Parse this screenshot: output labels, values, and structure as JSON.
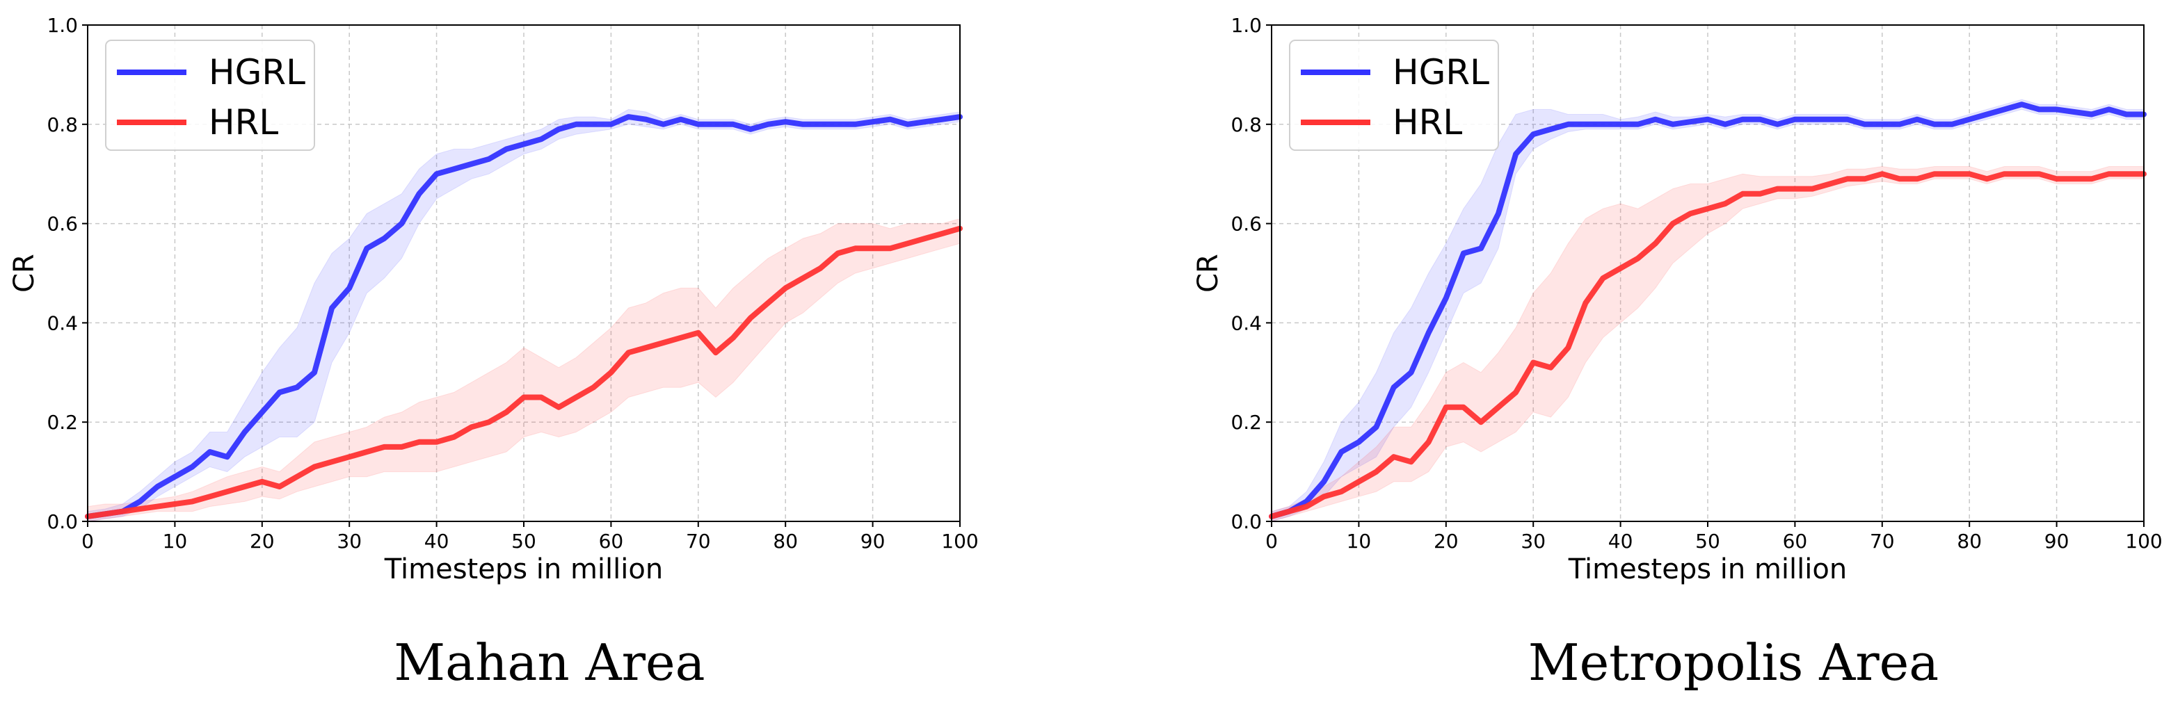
{
  "chart_data": [
    {
      "type": "line",
      "caption": "Mahan Area",
      "xlabel": "Timesteps in million",
      "ylabel": "CR",
      "xlim": [
        0,
        100
      ],
      "ylim": [
        0,
        1.0
      ],
      "xticks": [
        "0",
        "10",
        "20",
        "30",
        "40",
        "50",
        "60",
        "70",
        "80",
        "90",
        "100"
      ],
      "yticks": [
        "0.0",
        "0.2",
        "0.4",
        "0.6",
        "0.8",
        "1.0"
      ],
      "grid": true,
      "legend_position": "top-left",
      "series": [
        {
          "name": "HGRL",
          "color": "#3333ff",
          "x": [
            0,
            2,
            4,
            6,
            8,
            10,
            12,
            14,
            16,
            18,
            20,
            22,
            24,
            26,
            28,
            30,
            32,
            34,
            36,
            38,
            40,
            42,
            44,
            46,
            48,
            50,
            52,
            54,
            56,
            58,
            60,
            62,
            64,
            66,
            68,
            70,
            72,
            74,
            76,
            78,
            80,
            82,
            84,
            86,
            88,
            90,
            92,
            94,
            96,
            98,
            100
          ],
          "y": [
            0.01,
            0.015,
            0.02,
            0.04,
            0.07,
            0.09,
            0.11,
            0.14,
            0.13,
            0.18,
            0.22,
            0.26,
            0.27,
            0.3,
            0.43,
            0.47,
            0.55,
            0.57,
            0.6,
            0.66,
            0.7,
            0.71,
            0.72,
            0.73,
            0.75,
            0.76,
            0.77,
            0.79,
            0.8,
            0.8,
            0.8,
            0.815,
            0.81,
            0.8,
            0.81,
            0.8,
            0.8,
            0.8,
            0.79,
            0.8,
            0.805,
            0.8,
            0.8,
            0.8,
            0.8,
            0.805,
            0.81,
            0.8,
            0.805,
            0.81,
            0.815
          ],
          "lower": [
            0.0,
            0.005,
            0.01,
            0.025,
            0.05,
            0.07,
            0.09,
            0.11,
            0.1,
            0.13,
            0.15,
            0.17,
            0.17,
            0.2,
            0.32,
            0.38,
            0.46,
            0.49,
            0.53,
            0.6,
            0.65,
            0.67,
            0.69,
            0.7,
            0.72,
            0.74,
            0.75,
            0.77,
            0.78,
            0.785,
            0.79,
            0.8,
            0.795,
            0.79,
            0.8,
            0.79,
            0.79,
            0.79,
            0.78,
            0.79,
            0.795,
            0.79,
            0.79,
            0.79,
            0.79,
            0.795,
            0.8,
            0.79,
            0.795,
            0.8,
            0.805
          ],
          "upper": [
            0.02,
            0.025,
            0.035,
            0.06,
            0.09,
            0.12,
            0.14,
            0.18,
            0.18,
            0.24,
            0.3,
            0.35,
            0.39,
            0.48,
            0.54,
            0.57,
            0.62,
            0.64,
            0.66,
            0.71,
            0.74,
            0.75,
            0.75,
            0.76,
            0.77,
            0.78,
            0.79,
            0.81,
            0.815,
            0.815,
            0.81,
            0.83,
            0.825,
            0.81,
            0.82,
            0.81,
            0.81,
            0.81,
            0.8,
            0.81,
            0.815,
            0.81,
            0.81,
            0.81,
            0.81,
            0.815,
            0.82,
            0.81,
            0.815,
            0.82,
            0.825
          ]
        },
        {
          "name": "HRL",
          "color": "#ff3333",
          "x": [
            0,
            2,
            4,
            6,
            8,
            10,
            12,
            14,
            16,
            18,
            20,
            22,
            24,
            26,
            28,
            30,
            32,
            34,
            36,
            38,
            40,
            42,
            44,
            46,
            48,
            50,
            52,
            54,
            56,
            58,
            60,
            62,
            64,
            66,
            68,
            70,
            72,
            74,
            76,
            78,
            80,
            82,
            84,
            86,
            88,
            90,
            92,
            94,
            96,
            98,
            100
          ],
          "y": [
            0.01,
            0.015,
            0.02,
            0.025,
            0.03,
            0.035,
            0.04,
            0.05,
            0.06,
            0.07,
            0.08,
            0.07,
            0.09,
            0.11,
            0.12,
            0.13,
            0.14,
            0.15,
            0.15,
            0.16,
            0.16,
            0.17,
            0.19,
            0.2,
            0.22,
            0.25,
            0.25,
            0.23,
            0.25,
            0.27,
            0.3,
            0.34,
            0.35,
            0.36,
            0.37,
            0.38,
            0.34,
            0.37,
            0.41,
            0.44,
            0.47,
            0.49,
            0.51,
            0.54,
            0.55,
            0.55,
            0.55,
            0.56,
            0.57,
            0.58,
            0.59
          ],
          "lower": [
            0.0,
            0.005,
            0.01,
            0.015,
            0.02,
            0.02,
            0.02,
            0.03,
            0.035,
            0.04,
            0.05,
            0.045,
            0.06,
            0.07,
            0.08,
            0.09,
            0.09,
            0.1,
            0.1,
            0.1,
            0.1,
            0.11,
            0.12,
            0.13,
            0.14,
            0.17,
            0.18,
            0.17,
            0.18,
            0.2,
            0.22,
            0.25,
            0.26,
            0.27,
            0.27,
            0.28,
            0.25,
            0.28,
            0.32,
            0.36,
            0.4,
            0.42,
            0.45,
            0.48,
            0.5,
            0.51,
            0.52,
            0.53,
            0.54,
            0.55,
            0.56
          ],
          "upper": [
            0.03,
            0.035,
            0.035,
            0.04,
            0.045,
            0.05,
            0.06,
            0.075,
            0.09,
            0.1,
            0.11,
            0.1,
            0.13,
            0.16,
            0.17,
            0.18,
            0.19,
            0.21,
            0.22,
            0.24,
            0.25,
            0.26,
            0.28,
            0.3,
            0.32,
            0.35,
            0.33,
            0.31,
            0.33,
            0.36,
            0.39,
            0.43,
            0.44,
            0.46,
            0.47,
            0.47,
            0.43,
            0.47,
            0.5,
            0.53,
            0.55,
            0.57,
            0.58,
            0.6,
            0.6,
            0.6,
            0.59,
            0.6,
            0.6,
            0.6,
            0.61
          ]
        }
      ]
    },
    {
      "type": "line",
      "caption": "Metropolis Area",
      "xlabel": "Timesteps in million",
      "ylabel": "CR",
      "xlim": [
        0,
        100
      ],
      "ylim": [
        0,
        1.0
      ],
      "xticks": [
        "0",
        "10",
        "20",
        "30",
        "40",
        "50",
        "60",
        "70",
        "80",
        "90",
        "100"
      ],
      "yticks": [
        "0.0",
        "0.2",
        "0.4",
        "0.6",
        "0.8",
        "1.0"
      ],
      "grid": true,
      "legend_position": "top-left",
      "series": [
        {
          "name": "HGRL",
          "color": "#3333ff",
          "x": [
            0,
            2,
            4,
            6,
            8,
            10,
            12,
            14,
            16,
            18,
            20,
            22,
            24,
            26,
            28,
            30,
            32,
            34,
            36,
            38,
            40,
            42,
            44,
            46,
            48,
            50,
            52,
            54,
            56,
            58,
            60,
            62,
            64,
            66,
            68,
            70,
            72,
            74,
            76,
            78,
            80,
            82,
            84,
            86,
            88,
            90,
            92,
            94,
            96,
            98,
            100
          ],
          "y": [
            0.01,
            0.02,
            0.04,
            0.08,
            0.14,
            0.16,
            0.19,
            0.27,
            0.3,
            0.38,
            0.45,
            0.54,
            0.55,
            0.62,
            0.74,
            0.78,
            0.79,
            0.8,
            0.8,
            0.8,
            0.8,
            0.8,
            0.81,
            0.8,
            0.805,
            0.81,
            0.8,
            0.81,
            0.81,
            0.8,
            0.81,
            0.81,
            0.81,
            0.81,
            0.8,
            0.8,
            0.8,
            0.81,
            0.8,
            0.8,
            0.81,
            0.82,
            0.83,
            0.84,
            0.83,
            0.83,
            0.825,
            0.82,
            0.83,
            0.82,
            0.82
          ],
          "lower": [
            0.0,
            0.01,
            0.025,
            0.05,
            0.09,
            0.11,
            0.13,
            0.19,
            0.23,
            0.3,
            0.38,
            0.46,
            0.48,
            0.55,
            0.7,
            0.75,
            0.77,
            0.785,
            0.79,
            0.79,
            0.79,
            0.79,
            0.8,
            0.79,
            0.795,
            0.8,
            0.79,
            0.8,
            0.8,
            0.79,
            0.8,
            0.8,
            0.8,
            0.8,
            0.79,
            0.79,
            0.79,
            0.8,
            0.79,
            0.79,
            0.8,
            0.81,
            0.82,
            0.83,
            0.82,
            0.82,
            0.815,
            0.81,
            0.82,
            0.81,
            0.81
          ],
          "upper": [
            0.02,
            0.03,
            0.06,
            0.12,
            0.2,
            0.24,
            0.3,
            0.38,
            0.43,
            0.5,
            0.56,
            0.63,
            0.68,
            0.76,
            0.82,
            0.83,
            0.83,
            0.82,
            0.82,
            0.82,
            0.81,
            0.815,
            0.825,
            0.815,
            0.815,
            0.82,
            0.815,
            0.82,
            0.82,
            0.81,
            0.82,
            0.82,
            0.82,
            0.82,
            0.81,
            0.81,
            0.81,
            0.82,
            0.81,
            0.81,
            0.82,
            0.83,
            0.84,
            0.85,
            0.84,
            0.84,
            0.835,
            0.83,
            0.84,
            0.83,
            0.83
          ]
        },
        {
          "name": "HRL",
          "color": "#ff3333",
          "x": [
            0,
            2,
            4,
            6,
            8,
            10,
            12,
            14,
            16,
            18,
            20,
            22,
            24,
            26,
            28,
            30,
            32,
            34,
            36,
            38,
            40,
            42,
            44,
            46,
            48,
            50,
            52,
            54,
            56,
            58,
            60,
            62,
            64,
            66,
            68,
            70,
            72,
            74,
            76,
            78,
            80,
            82,
            84,
            86,
            88,
            90,
            92,
            94,
            96,
            98,
            100
          ],
          "y": [
            0.01,
            0.02,
            0.03,
            0.05,
            0.06,
            0.08,
            0.1,
            0.13,
            0.12,
            0.16,
            0.23,
            0.23,
            0.2,
            0.23,
            0.26,
            0.32,
            0.31,
            0.35,
            0.44,
            0.49,
            0.51,
            0.53,
            0.56,
            0.6,
            0.62,
            0.63,
            0.64,
            0.66,
            0.66,
            0.67,
            0.67,
            0.67,
            0.68,
            0.69,
            0.69,
            0.7,
            0.69,
            0.69,
            0.7,
            0.7,
            0.7,
            0.69,
            0.7,
            0.7,
            0.7,
            0.69,
            0.69,
            0.69,
            0.7,
            0.7,
            0.7
          ],
          "lower": [
            0.0,
            0.01,
            0.02,
            0.03,
            0.04,
            0.05,
            0.06,
            0.08,
            0.08,
            0.1,
            0.15,
            0.16,
            0.14,
            0.16,
            0.18,
            0.22,
            0.21,
            0.25,
            0.32,
            0.37,
            0.4,
            0.43,
            0.47,
            0.52,
            0.55,
            0.58,
            0.6,
            0.63,
            0.64,
            0.65,
            0.65,
            0.655,
            0.665,
            0.675,
            0.68,
            0.685,
            0.68,
            0.68,
            0.69,
            0.69,
            0.69,
            0.68,
            0.69,
            0.69,
            0.69,
            0.68,
            0.68,
            0.68,
            0.69,
            0.69,
            0.69
          ],
          "upper": [
            0.02,
            0.03,
            0.045,
            0.07,
            0.09,
            0.12,
            0.15,
            0.19,
            0.19,
            0.24,
            0.3,
            0.32,
            0.3,
            0.34,
            0.39,
            0.46,
            0.5,
            0.56,
            0.61,
            0.63,
            0.64,
            0.63,
            0.65,
            0.67,
            0.68,
            0.68,
            0.69,
            0.7,
            0.695,
            0.695,
            0.695,
            0.695,
            0.7,
            0.71,
            0.71,
            0.715,
            0.71,
            0.71,
            0.715,
            0.715,
            0.715,
            0.705,
            0.715,
            0.715,
            0.715,
            0.705,
            0.705,
            0.705,
            0.715,
            0.715,
            0.715
          ]
        }
      ]
    }
  ]
}
